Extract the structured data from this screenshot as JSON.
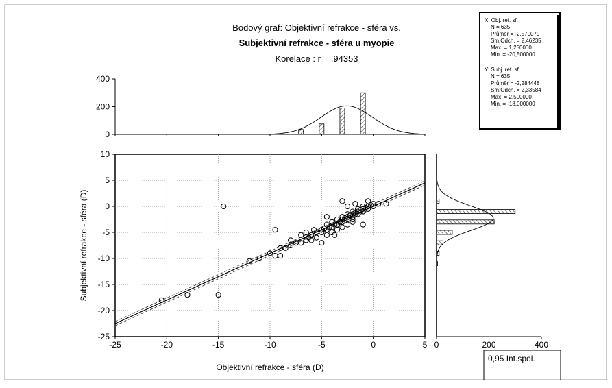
{
  "chart_data": {
    "type": "scatter",
    "title_lines": [
      "Bodový graf: Objektivní refrakce - sféra  vs.",
      "Subjektivní refrakce - sféra u myopie",
      "Korelace :   r = ,94353"
    ],
    "xlabel": "Objektivní refrakce - sféra (D)",
    "ylabel": "Subjektivní refrakce - sféra (D)",
    "xlim": [
      -25,
      5
    ],
    "ylim": [
      -25,
      10
    ],
    "x_ticks": [
      "-25",
      "-20",
      "-15",
      "-10",
      "-5",
      "0",
      "5"
    ],
    "y_ticks": [
      "10",
      "5",
      "0",
      "-5",
      "-10",
      "-15",
      "-20",
      "-25"
    ],
    "grid": true,
    "regression": {
      "slope": 0.9,
      "intercept": 0.0
    },
    "confidence_label": "0,95 Int.spol.",
    "points": [
      [
        -20.5,
        -18
      ],
      [
        -18,
        -17
      ],
      [
        -15,
        -17
      ],
      [
        -14.5,
        0
      ],
      [
        -12,
        -10.5
      ],
      [
        -11,
        -10
      ],
      [
        -10,
        -9
      ],
      [
        -9.5,
        -9.5
      ],
      [
        -9.5,
        -4.5
      ],
      [
        -9,
        -8
      ],
      [
        -9,
        -9.5
      ],
      [
        -8.5,
        -8
      ],
      [
        -8,
        -7.5
      ],
      [
        -8,
        -6.5
      ],
      [
        -7.5,
        -7
      ],
      [
        -7,
        -5.5
      ],
      [
        -7,
        -7
      ],
      [
        -6.5,
        -6.5
      ],
      [
        -6.5,
        -5
      ],
      [
        -6,
        -5.5
      ],
      [
        -6,
        -6.5
      ],
      [
        -5.5,
        -5
      ],
      [
        -5.5,
        -6
      ],
      [
        -5,
        -5
      ],
      [
        -5,
        -4.5
      ],
      [
        -5,
        -7
      ],
      [
        -4.75,
        -4.25
      ],
      [
        -4.5,
        -3.5
      ],
      [
        -4.5,
        -4.5
      ],
      [
        -4.5,
        -5.5
      ],
      [
        -4.25,
        -4
      ],
      [
        -4,
        -3
      ],
      [
        -4,
        -4
      ],
      [
        -4,
        -5
      ],
      [
        -3.75,
        -3.5
      ],
      [
        -3.5,
        -2.5
      ],
      [
        -3.5,
        -3.5
      ],
      [
        -3.5,
        -4.5
      ],
      [
        -3.25,
        -3
      ],
      [
        -3,
        -2
      ],
      [
        -3,
        -2.5
      ],
      [
        -3,
        -3
      ],
      [
        -3,
        -4
      ],
      [
        -2.75,
        -2.25
      ],
      [
        -2.5,
        -1.5
      ],
      [
        -2.5,
        -2
      ],
      [
        -2.5,
        -2.5
      ],
      [
        -2.5,
        -3.5
      ],
      [
        -2.25,
        -1.75
      ],
      [
        -2,
        -1
      ],
      [
        -2,
        -1.5
      ],
      [
        -2,
        -2
      ],
      [
        -2,
        -3
      ],
      [
        -1.75,
        -1.25
      ],
      [
        -1.5,
        -0.5
      ],
      [
        -1.5,
        -1
      ],
      [
        -1.5,
        -1.5
      ],
      [
        -1.25,
        -0.75
      ],
      [
        -1,
        0
      ],
      [
        -1,
        -0.5
      ],
      [
        -1,
        -1
      ],
      [
        -1,
        -3.5
      ],
      [
        -0.75,
        -0.25
      ],
      [
        -0.5,
        0
      ],
      [
        -0.5,
        -0.5
      ],
      [
        -0.5,
        1
      ],
      [
        -0.25,
        0.25
      ],
      [
        0,
        0
      ],
      [
        0,
        0.5
      ],
      [
        0.5,
        0.5
      ],
      [
        1.25,
        0.5
      ],
      [
        -3,
        1
      ],
      [
        -2.5,
        0
      ],
      [
        -1.75,
        0.5
      ],
      [
        -4.5,
        -2
      ],
      [
        -3.75,
        -5.5
      ],
      [
        -2,
        -2.5
      ],
      [
        -5.75,
        -4.5
      ],
      [
        -6.25,
        -6
      ]
    ],
    "x_histogram": {
      "ylim": [
        0,
        400
      ],
      "y_ticks": [
        "400",
        "200",
        "0"
      ],
      "bins": [
        {
          "x": -10.5,
          "count": 2
        },
        {
          "x": -9,
          "count": 2
        },
        {
          "x": -7,
          "count": 35
        },
        {
          "x": -5,
          "count": 75
        },
        {
          "x": -3,
          "count": 190
        },
        {
          "x": -1,
          "count": 300
        },
        {
          "x": 1,
          "count": 3
        }
      ],
      "normal": {
        "mean": -2.57,
        "sd": 2.46,
        "n": 635,
        "binwidth": 2
      }
    },
    "y_histogram": {
      "xlim": [
        0,
        400
      ],
      "x_ticks": [
        "0",
        "200",
        "400"
      ],
      "bins": [
        {
          "y": 1,
          "count": 10
        },
        {
          "y": -1,
          "count": 300
        },
        {
          "y": -3,
          "count": 220
        },
        {
          "y": -5,
          "count": 60
        },
        {
          "y": -7,
          "count": 25
        },
        {
          "y": -9,
          "count": 10
        },
        {
          "y": -11,
          "count": 4
        }
      ],
      "normal": {
        "mean": -2.28,
        "sd": 2.34,
        "n": 635,
        "binwidth": 2
      }
    },
    "stats_box": {
      "x_header": "X: Obj. ref. sf.",
      "x_lines": [
        "N = 635",
        "Průměr = -2,570079",
        "Sm.Odch. = 2,46235",
        "Max. = 1,250000",
        "Min. = -20,500000"
      ],
      "y_header": "Y: Subj. ref. sf.",
      "y_lines": [
        "N = 635",
        "Průměr = -2,284448",
        "Sm.Odch. = 2,33584",
        "Max. = 2,500000",
        "Min. = -18,000000"
      ]
    }
  }
}
